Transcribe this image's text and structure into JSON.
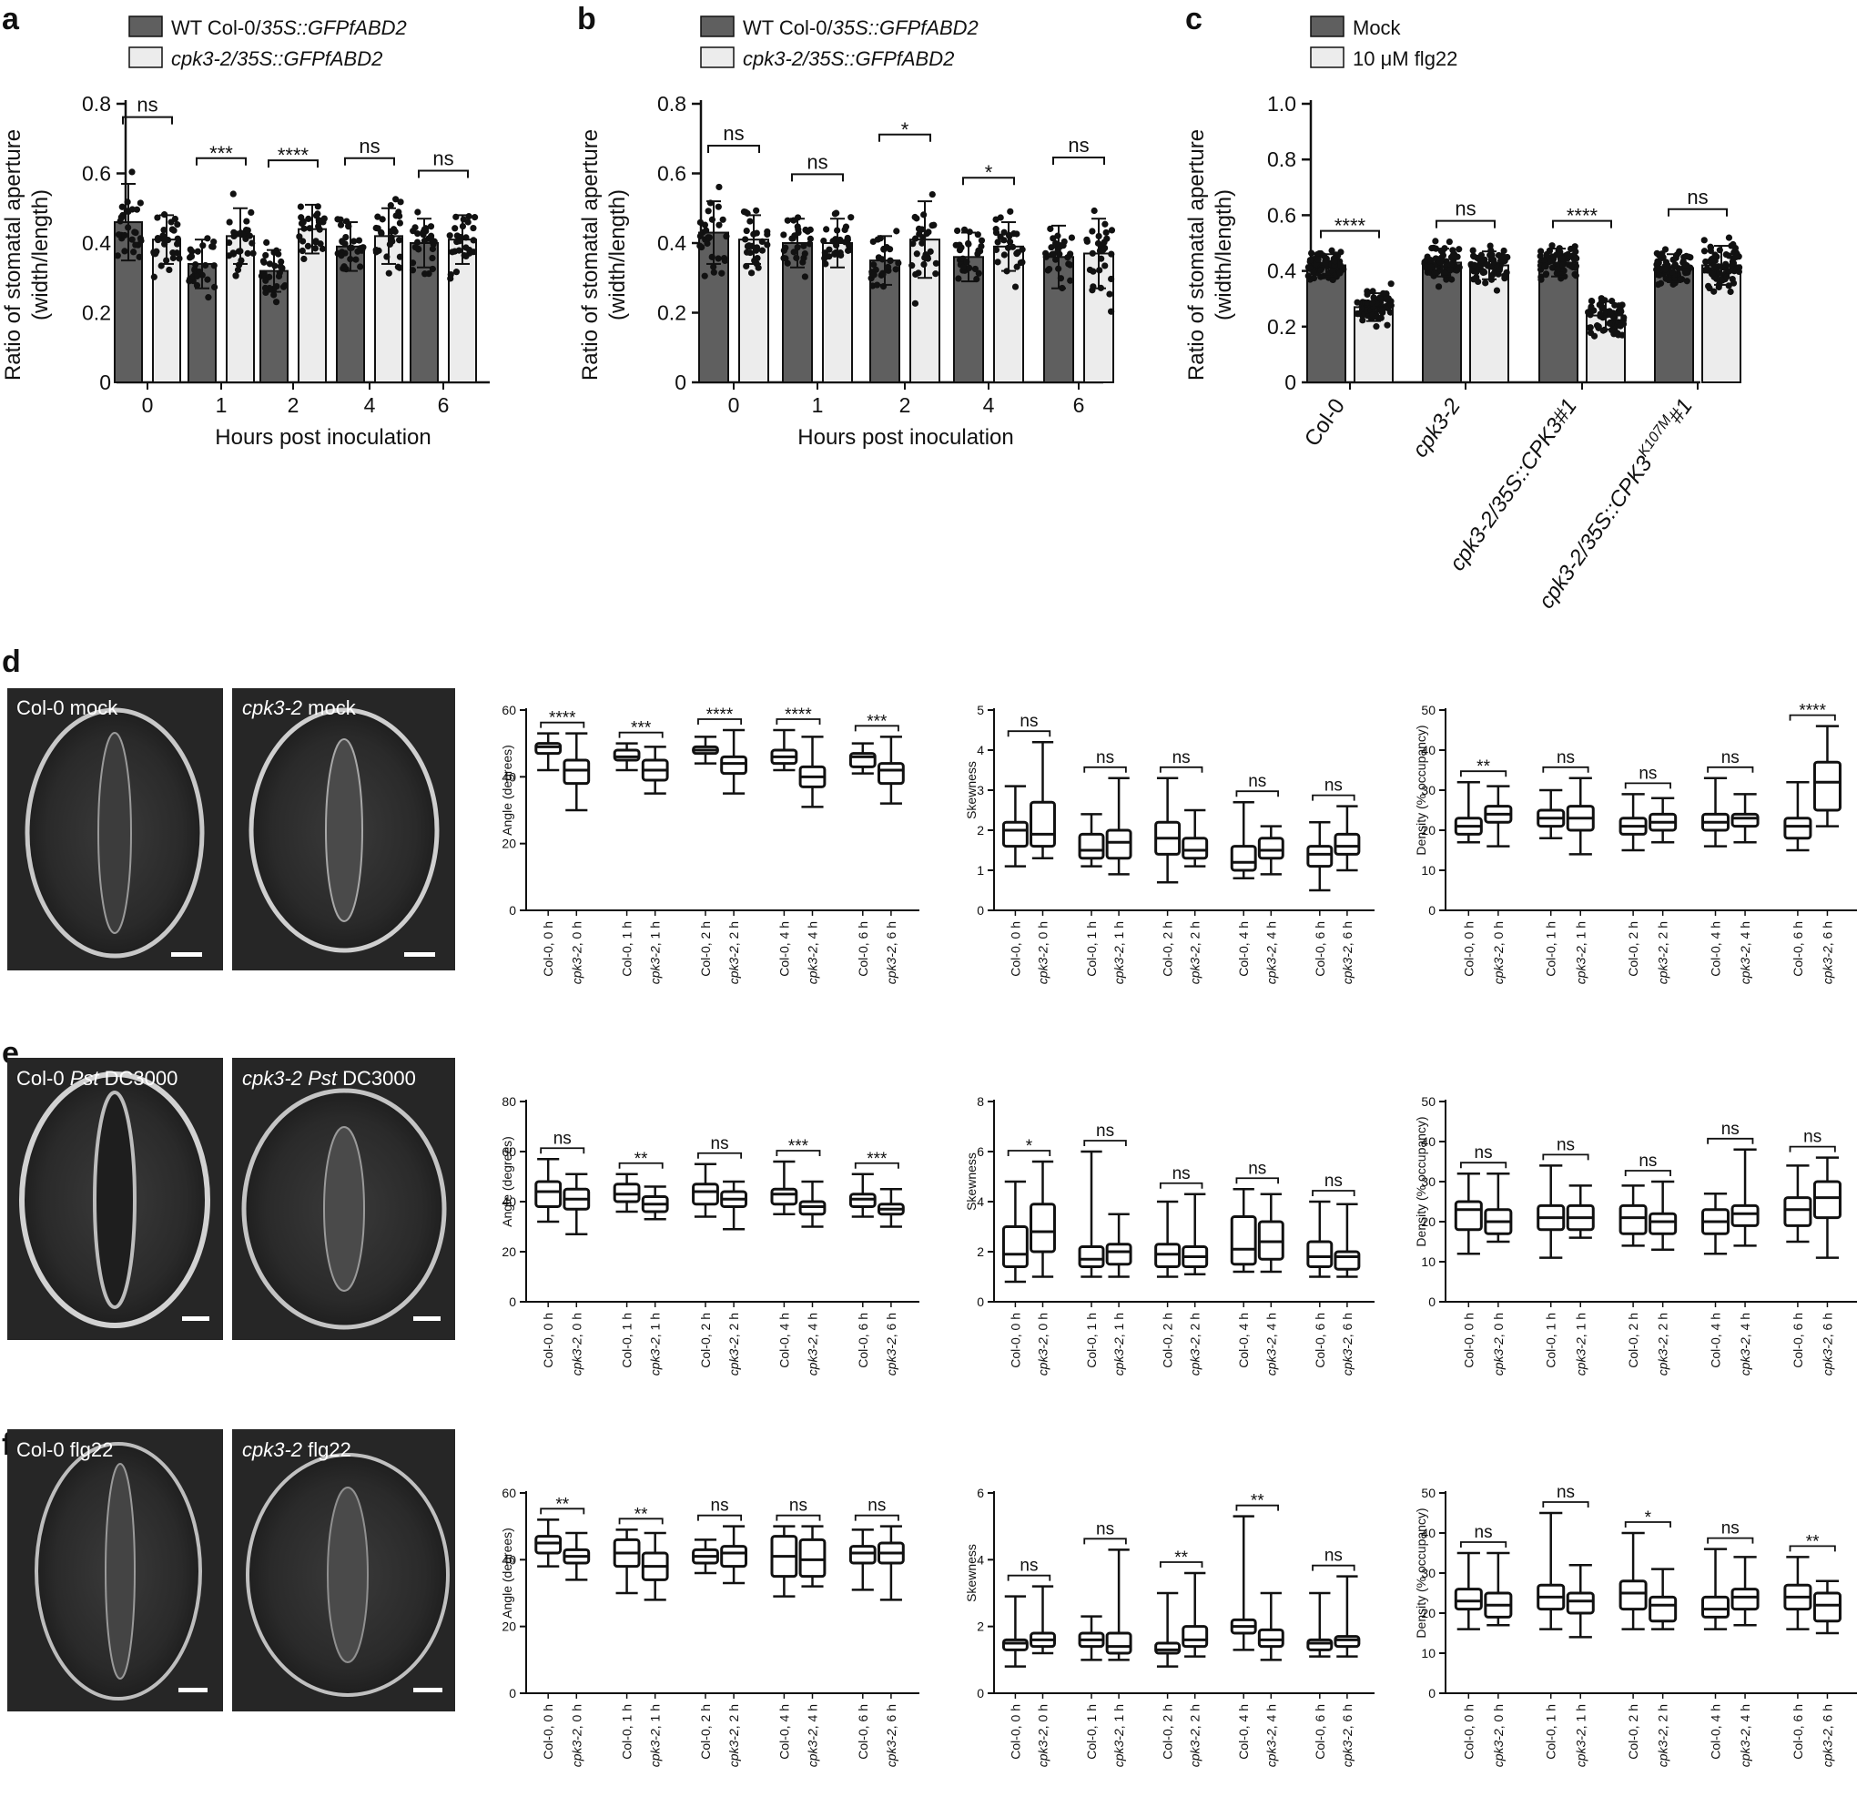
{
  "panels": {
    "a": {
      "letter": "a",
      "legend": [
        {
          "pre": "WT Col-0/",
          "ital": "35S::GFPfABD2"
        },
        {
          "ital": "cpk3-2/35S::GFPfABD2"
        }
      ],
      "ylabel1": "Ratio of stomatal aperture",
      "ylabel2": "(width/length)",
      "xlabel": "Hours post inoculation"
    },
    "b": {
      "letter": "b",
      "legend": [
        {
          "pre": "WT Col-0/",
          "ital": "35S::GFPfABD2"
        },
        {
          "ital": "cpk3-2/35S::GFPfABD2"
        }
      ],
      "ylabel1": "Ratio of stomatal aperture",
      "ylabel2": "(width/length)",
      "xlabel": "Hours post inoculation"
    },
    "c": {
      "letter": "c",
      "legend": [
        "Mock",
        "10 μM flg22"
      ],
      "ylabel1": "Ratio of stomatal aperture",
      "ylabel2": "(width/length)",
      "categories": [
        {
          "label": "Col-0"
        },
        {
          "label": "cpk3-2"
        },
        {
          "label": "cpk3-2/35S::CPK3#1"
        },
        {
          "pre": "cpk3-2/35S::CPK3",
          "sup": "K107M",
          "post": "#1"
        }
      ]
    },
    "d": {
      "letter": "d",
      "images": [
        "Col-0  mock",
        ""
      ],
      "images_ital": [
        "",
        "cpk3-2"
      ],
      "images_rest": [
        "",
        "  mock"
      ]
    },
    "e": {
      "letter": "e",
      "images": [
        {
          "pre": "Col-0  ",
          "ital": "Pst",
          "post": " DC3000"
        },
        {
          "ital1": "cpk3-2",
          "sp": " ",
          "ital2": "Pst",
          "post": " DC3000"
        }
      ]
    },
    "f": {
      "letter": "f",
      "images": [
        "Col-0 flg22",
        ""
      ],
      "images_ital": [
        "",
        "cpk3-2"
      ],
      "images_rest": [
        "",
        " flg22"
      ]
    }
  },
  "boxes": {
    "ylabels": {
      "angle": "Angle (degrees)",
      "skew": "Skewness",
      "density": "Density (% occupancy)"
    },
    "xcats": [
      {
        "g": "Col-0",
        "t": ", 0 h"
      },
      {
        "g": "cpk3-2",
        "t": ", 0 h"
      },
      {
        "g": "Col-0",
        "t": ", 1 h"
      },
      {
        "g": "cpk3-2",
        "t": ", 1 h"
      },
      {
        "g": "Col-0",
        "t": ", 2 h"
      },
      {
        "g": "cpk3-2",
        "t": ", 2 h"
      },
      {
        "g": "Col-0",
        "t": ", 4 h"
      },
      {
        "g": "cpk3-2",
        "t": ", 4 h"
      },
      {
        "g": "Col-0",
        "t": ", 6 h"
      },
      {
        "g": "cpk3-2",
        "t": ", 6 h"
      }
    ]
  },
  "chart_data": [
    {
      "id": "a",
      "type": "bar",
      "categories": [
        "0",
        "1",
        "2",
        "4",
        "6"
      ],
      "series": [
        {
          "name": "WT Col-0/35S::GFPfABD2",
          "values": [
            0.46,
            0.34,
            0.32,
            0.39,
            0.4
          ],
          "sd": [
            0.11,
            0.07,
            0.06,
            0.07,
            0.07
          ]
        },
        {
          "name": "cpk3-2/35S::GFPfABD2",
          "values": [
            0.41,
            0.42,
            0.44,
            0.42,
            0.41
          ],
          "sd": [
            0.07,
            0.08,
            0.07,
            0.08,
            0.07
          ]
        }
      ],
      "significance": [
        "ns",
        "***",
        "****",
        "ns",
        "ns"
      ],
      "yticks": [
        "0",
        "0.2",
        "0.4",
        "0.6",
        "0.8"
      ],
      "ylim": [
        0,
        0.8
      ]
    },
    {
      "id": "b",
      "type": "bar",
      "categories": [
        "0",
        "1",
        "2",
        "4",
        "6"
      ],
      "series": [
        {
          "name": "WT Col-0/35S::GFPfABD2",
          "values": [
            0.43,
            0.4,
            0.35,
            0.36,
            0.36
          ],
          "sd": [
            0.09,
            0.07,
            0.07,
            0.07,
            0.09
          ]
        },
        {
          "name": "cpk3-2/35S::GFPfABD2",
          "values": [
            0.41,
            0.4,
            0.41,
            0.39,
            0.37
          ],
          "sd": [
            0.07,
            0.07,
            0.11,
            0.07,
            0.1
          ]
        }
      ],
      "significance": [
        "ns",
        "ns",
        "*",
        "*",
        "ns"
      ],
      "yticks": [
        "0",
        "0.2",
        "0.4",
        "0.6",
        "0.8"
      ],
      "ylim": [
        0,
        0.8
      ]
    },
    {
      "id": "c",
      "type": "bar",
      "categories": [
        "Col-0",
        "cpk3-2",
        "cpk3-2/35S::CPK3#1",
        "cpk3-2/35S::CPK3K107M#1"
      ],
      "series": [
        {
          "name": "Mock",
          "values": [
            0.42,
            0.43,
            0.43,
            0.41
          ],
          "sd": [
            0.04,
            0.05,
            0.05,
            0.05
          ]
        },
        {
          "name": "10 μM flg22",
          "values": [
            0.27,
            0.42,
            0.24,
            0.42
          ],
          "sd": [
            0.05,
            0.05,
            0.05,
            0.07
          ]
        }
      ],
      "significance": [
        "****",
        "ns",
        "****",
        "ns"
      ],
      "yticks": [
        "0",
        "0.2",
        "0.4",
        "0.6",
        "0.8",
        "1.0"
      ],
      "ylim": [
        0,
        1.0
      ]
    },
    {
      "id": "d-angle",
      "type": "box",
      "ylim": [
        0,
        60
      ],
      "yticks": [
        "0",
        "20",
        "40",
        "60"
      ],
      "groups": [
        [
          42,
          47,
          49,
          50,
          53
        ],
        [
          30,
          38,
          42,
          45,
          53
        ],
        [
          42,
          45,
          46,
          48,
          50
        ],
        [
          35,
          39,
          42,
          45,
          49
        ],
        [
          44,
          47,
          48,
          49,
          52
        ],
        [
          35,
          41,
          44,
          46,
          54
        ],
        [
          42,
          44,
          46,
          48,
          54
        ],
        [
          31,
          37,
          40,
          43,
          52
        ],
        [
          41,
          43,
          46,
          47,
          50
        ],
        [
          32,
          38,
          42,
          44,
          52
        ]
      ],
      "sig": [
        "****",
        "***",
        "****",
        "****",
        "***"
      ]
    },
    {
      "id": "d-skew",
      "type": "box",
      "ylim": [
        0,
        5
      ],
      "yticks": [
        "0",
        "1",
        "2",
        "3",
        "4",
        "5"
      ],
      "groups": [
        [
          1.1,
          1.6,
          2.0,
          2.2,
          3.1
        ],
        [
          1.3,
          1.6,
          1.9,
          2.7,
          4.2
        ],
        [
          1.1,
          1.3,
          1.5,
          1.9,
          2.4
        ],
        [
          0.9,
          1.3,
          1.7,
          2.0,
          3.3
        ],
        [
          0.7,
          1.4,
          1.8,
          2.2,
          3.3
        ],
        [
          1.1,
          1.3,
          1.5,
          1.8,
          2.5
        ],
        [
          0.8,
          1.0,
          1.2,
          1.6,
          2.7
        ],
        [
          0.9,
          1.3,
          1.5,
          1.8,
          2.1
        ],
        [
          0.5,
          1.1,
          1.4,
          1.6,
          2.2
        ],
        [
          1.0,
          1.4,
          1.6,
          1.9,
          2.6
        ]
      ],
      "sig": [
        "ns",
        "ns",
        "ns",
        "ns",
        "ns"
      ]
    },
    {
      "id": "d-density",
      "type": "box",
      "ylim": [
        0,
        50
      ],
      "yticks": [
        "0",
        "10",
        "20",
        "30",
        "40",
        "50"
      ],
      "groups": [
        [
          17,
          19,
          21,
          23,
          32
        ],
        [
          16,
          22,
          24,
          26,
          31
        ],
        [
          18,
          21,
          23,
          25,
          30
        ],
        [
          14,
          20,
          23,
          26,
          33
        ],
        [
          15,
          19,
          21,
          23,
          29
        ],
        [
          17,
          20,
          22,
          24,
          28
        ],
        [
          16,
          20,
          22,
          24,
          33
        ],
        [
          17,
          21,
          23,
          24,
          29
        ],
        [
          15,
          18,
          21,
          23,
          32
        ],
        [
          21,
          25,
          32,
          37,
          46
        ]
      ],
      "sig": [
        "**",
        "ns",
        "ns",
        "ns",
        "****"
      ]
    },
    {
      "id": "e-angle",
      "type": "box",
      "ylim": [
        0,
        80
      ],
      "yticks": [
        "0",
        "20",
        "40",
        "60",
        "80"
      ],
      "groups": [
        [
          32,
          38,
          44,
          48,
          57
        ],
        [
          27,
          37,
          41,
          45,
          51
        ],
        [
          36,
          40,
          43,
          47,
          51
        ],
        [
          33,
          36,
          39,
          42,
          46
        ],
        [
          34,
          39,
          44,
          47,
          55
        ],
        [
          29,
          38,
          41,
          44,
          48
        ],
        [
          35,
          39,
          43,
          45,
          56
        ],
        [
          30,
          35,
          38,
          40,
          48
        ],
        [
          34,
          38,
          41,
          43,
          51
        ],
        [
          30,
          35,
          37,
          39,
          45
        ]
      ],
      "sig": [
        "ns",
        "**",
        "ns",
        "***",
        "***"
      ]
    },
    {
      "id": "e-skew",
      "type": "box",
      "ylim": [
        0,
        8
      ],
      "yticks": [
        "0",
        "2",
        "4",
        "6",
        "8"
      ],
      "groups": [
        [
          0.8,
          1.4,
          1.9,
          3.0,
          4.8
        ],
        [
          1.0,
          2.0,
          2.8,
          3.9,
          5.6
        ],
        [
          1.0,
          1.4,
          1.7,
          2.2,
          6.0
        ],
        [
          1.0,
          1.5,
          2.0,
          2.3,
          3.5
        ],
        [
          1.0,
          1.4,
          1.9,
          2.3,
          4.0
        ],
        [
          1.1,
          1.4,
          1.8,
          2.2,
          4.3
        ],
        [
          1.2,
          1.5,
          2.1,
          3.4,
          4.5
        ],
        [
          1.2,
          1.7,
          2.4,
          3.2,
          4.3
        ],
        [
          1.0,
          1.4,
          1.8,
          2.4,
          4.0
        ],
        [
          1.0,
          1.3,
          1.8,
          2.0,
          3.9
        ]
      ],
      "sig": [
        "*",
        "ns",
        "ns",
        "ns",
        "ns"
      ]
    },
    {
      "id": "e-density",
      "type": "box",
      "ylim": [
        0,
        50
      ],
      "yticks": [
        "0",
        "10",
        "20",
        "30",
        "40",
        "50"
      ],
      "groups": [
        [
          12,
          18,
          23,
          25,
          32
        ],
        [
          15,
          17,
          20,
          23,
          32
        ],
        [
          11,
          18,
          21,
          24,
          34
        ],
        [
          16,
          18,
          21,
          24,
          29
        ],
        [
          14,
          17,
          21,
          24,
          29
        ],
        [
          13,
          17,
          20,
          22,
          30
        ],
        [
          12,
          17,
          20,
          23,
          27
        ],
        [
          14,
          19,
          22,
          24,
          38
        ],
        [
          15,
          19,
          23,
          26,
          34
        ],
        [
          11,
          21,
          26,
          30,
          36
        ]
      ],
      "sig": [
        "ns",
        "ns",
        "ns",
        "ns",
        "ns"
      ]
    },
    {
      "id": "f-angle",
      "type": "box",
      "ylim": [
        0,
        60
      ],
      "yticks": [
        "0",
        "20",
        "40",
        "60"
      ],
      "groups": [
        [
          38,
          42,
          45,
          47,
          52
        ],
        [
          34,
          39,
          41,
          43,
          48
        ],
        [
          30,
          38,
          42,
          46,
          49
        ],
        [
          28,
          34,
          38,
          42,
          48
        ],
        [
          36,
          39,
          41,
          43,
          46
        ],
        [
          33,
          38,
          42,
          44,
          50
        ],
        [
          29,
          35,
          41,
          47,
          50
        ],
        [
          32,
          35,
          40,
          46,
          50
        ],
        [
          31,
          39,
          42,
          44,
          49
        ],
        [
          28,
          39,
          42,
          45,
          50
        ]
      ],
      "sig": [
        "**",
        "**",
        "ns",
        "ns",
        "ns"
      ]
    },
    {
      "id": "f-skew",
      "type": "box",
      "ylim": [
        0,
        6
      ],
      "yticks": [
        "0",
        "2",
        "4",
        "6"
      ],
      "groups": [
        [
          0.8,
          1.3,
          1.5,
          1.6,
          2.9
        ],
        [
          1.2,
          1.4,
          1.6,
          1.8,
          3.2
        ],
        [
          1.0,
          1.4,
          1.6,
          1.8,
          2.3
        ],
        [
          1.0,
          1.2,
          1.4,
          1.8,
          4.3
        ],
        [
          0.8,
          1.2,
          1.3,
          1.5,
          3.0
        ],
        [
          1.1,
          1.4,
          1.6,
          2.0,
          3.6
        ],
        [
          1.3,
          1.8,
          2.0,
          2.2,
          5.3
        ],
        [
          1.0,
          1.4,
          1.6,
          1.9,
          3.0
        ],
        [
          1.1,
          1.3,
          1.5,
          1.6,
          3.0
        ],
        [
          1.1,
          1.4,
          1.6,
          1.7,
          3.5
        ]
      ],
      "sig": [
        "ns",
        "ns",
        "**",
        "**",
        "ns"
      ]
    },
    {
      "id": "f-density",
      "type": "box",
      "ylim": [
        0,
        50
      ],
      "yticks": [
        "0",
        "10",
        "20",
        "30",
        "40",
        "50"
      ],
      "groups": [
        [
          16,
          21,
          23,
          26,
          35
        ],
        [
          17,
          19,
          22,
          25,
          35
        ],
        [
          16,
          21,
          24,
          27,
          45
        ],
        [
          14,
          20,
          23,
          25,
          32
        ],
        [
          16,
          21,
          25,
          28,
          40
        ],
        [
          16,
          18,
          22,
          24,
          31
        ],
        [
          16,
          19,
          21,
          24,
          36
        ],
        [
          17,
          21,
          24,
          26,
          34
        ],
        [
          16,
          21,
          24,
          27,
          34
        ],
        [
          15,
          18,
          22,
          25,
          28
        ]
      ],
      "sig": [
        "ns",
        "ns",
        "*",
        "ns",
        "**"
      ]
    }
  ]
}
